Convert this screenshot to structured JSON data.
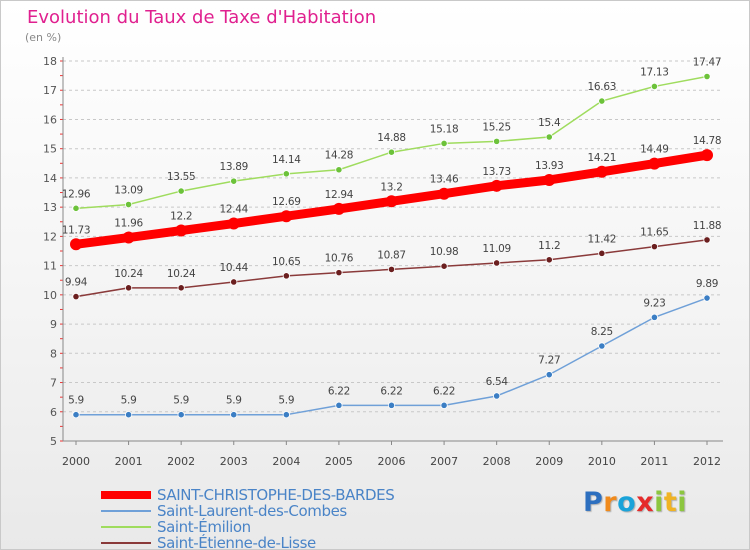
{
  "chart_data": {
    "type": "line",
    "title": "Evolution du Taux de Taxe d'Habitation",
    "ylabel": "(en %)",
    "xlabel": "",
    "ylim": [
      5,
      18
    ],
    "yticks": [
      "5",
      "6",
      "7",
      "8",
      "9",
      "10",
      "11",
      "12",
      "13",
      "14",
      "15",
      "16",
      "17",
      "18"
    ],
    "x": [
      "2000",
      "2001",
      "2002",
      "2003",
      "2004",
      "2005",
      "2006",
      "2007",
      "2008",
      "2009",
      "2010",
      "2011",
      "2012"
    ],
    "grid": "horizontal-dashed",
    "legend_placement": "bottom-left",
    "series": [
      {
        "name": "SAINT-CHRISTOPHE-DES-BARDES",
        "color": "#ff0000",
        "point_color": "#ff0000",
        "width": 9,
        "marker": 6,
        "values": [
          11.73,
          11.96,
          12.2,
          12.44,
          12.69,
          12.94,
          13.2,
          13.46,
          13.73,
          13.93,
          14.21,
          14.49,
          14.78
        ],
        "labels": [
          "11.73",
          "11.96",
          "12.2",
          "12.44",
          "12.69",
          "12.94",
          "13.2",
          "13.46",
          "13.73",
          "13.93",
          "14.21",
          "14.49",
          "14.78"
        ]
      },
      {
        "name": "Saint-Laurent-des-Combes",
        "color": "#6fa0d8",
        "point_color": "#3b7ec4",
        "width": 1.5,
        "marker": 3.2,
        "values": [
          5.9,
          5.9,
          5.9,
          5.9,
          5.9,
          6.22,
          6.22,
          6.22,
          6.54,
          7.27,
          8.25,
          9.23,
          9.89
        ],
        "labels": [
          "5.9",
          "5.9",
          "5.9",
          "5.9",
          "5.9",
          "6.22",
          "6.22",
          "6.22",
          "6.54",
          "7.27",
          "8.25",
          "9.23",
          "9.89"
        ]
      },
      {
        "name": "Saint-Émilion",
        "color": "#9fdc5e",
        "point_color": "#6cc23a",
        "width": 1.5,
        "marker": 3.2,
        "values": [
          12.96,
          13.09,
          13.55,
          13.89,
          14.14,
          14.28,
          14.88,
          15.18,
          15.25,
          15.4,
          16.63,
          17.13,
          17.47
        ],
        "labels": [
          "12.96",
          "13.09",
          "13.55",
          "13.89",
          "14.14",
          "14.28",
          "14.88",
          "15.18",
          "15.25",
          "15.4",
          "16.63",
          "17.13",
          "17.47"
        ]
      },
      {
        "name": "Saint-Étienne-de-Lisse",
        "color": "#8a3a3a",
        "point_color": "#6b1f1f",
        "width": 1.5,
        "marker": 3.2,
        "values": [
          9.94,
          10.24,
          10.24,
          10.44,
          10.65,
          10.76,
          10.87,
          10.98,
          11.09,
          11.2,
          11.42,
          11.65,
          11.88
        ],
        "labels": [
          "9.94",
          "10.24",
          "10.24",
          "10.44",
          "10.65",
          "10.76",
          "10.87",
          "10.98",
          "11.09",
          "11.2",
          "11.42",
          "11.65",
          "11.88"
        ]
      }
    ]
  },
  "logo": {
    "text": "Proxiti",
    "letters": [
      "P",
      "r",
      "o",
      "x",
      "i",
      "t",
      "i"
    ],
    "colors": [
      "#2d6fbf",
      "#f08a1c",
      "#1aa3d9",
      "#e52b2b",
      "#8cc63f",
      "#f0b323",
      "#8cc63f"
    ]
  }
}
